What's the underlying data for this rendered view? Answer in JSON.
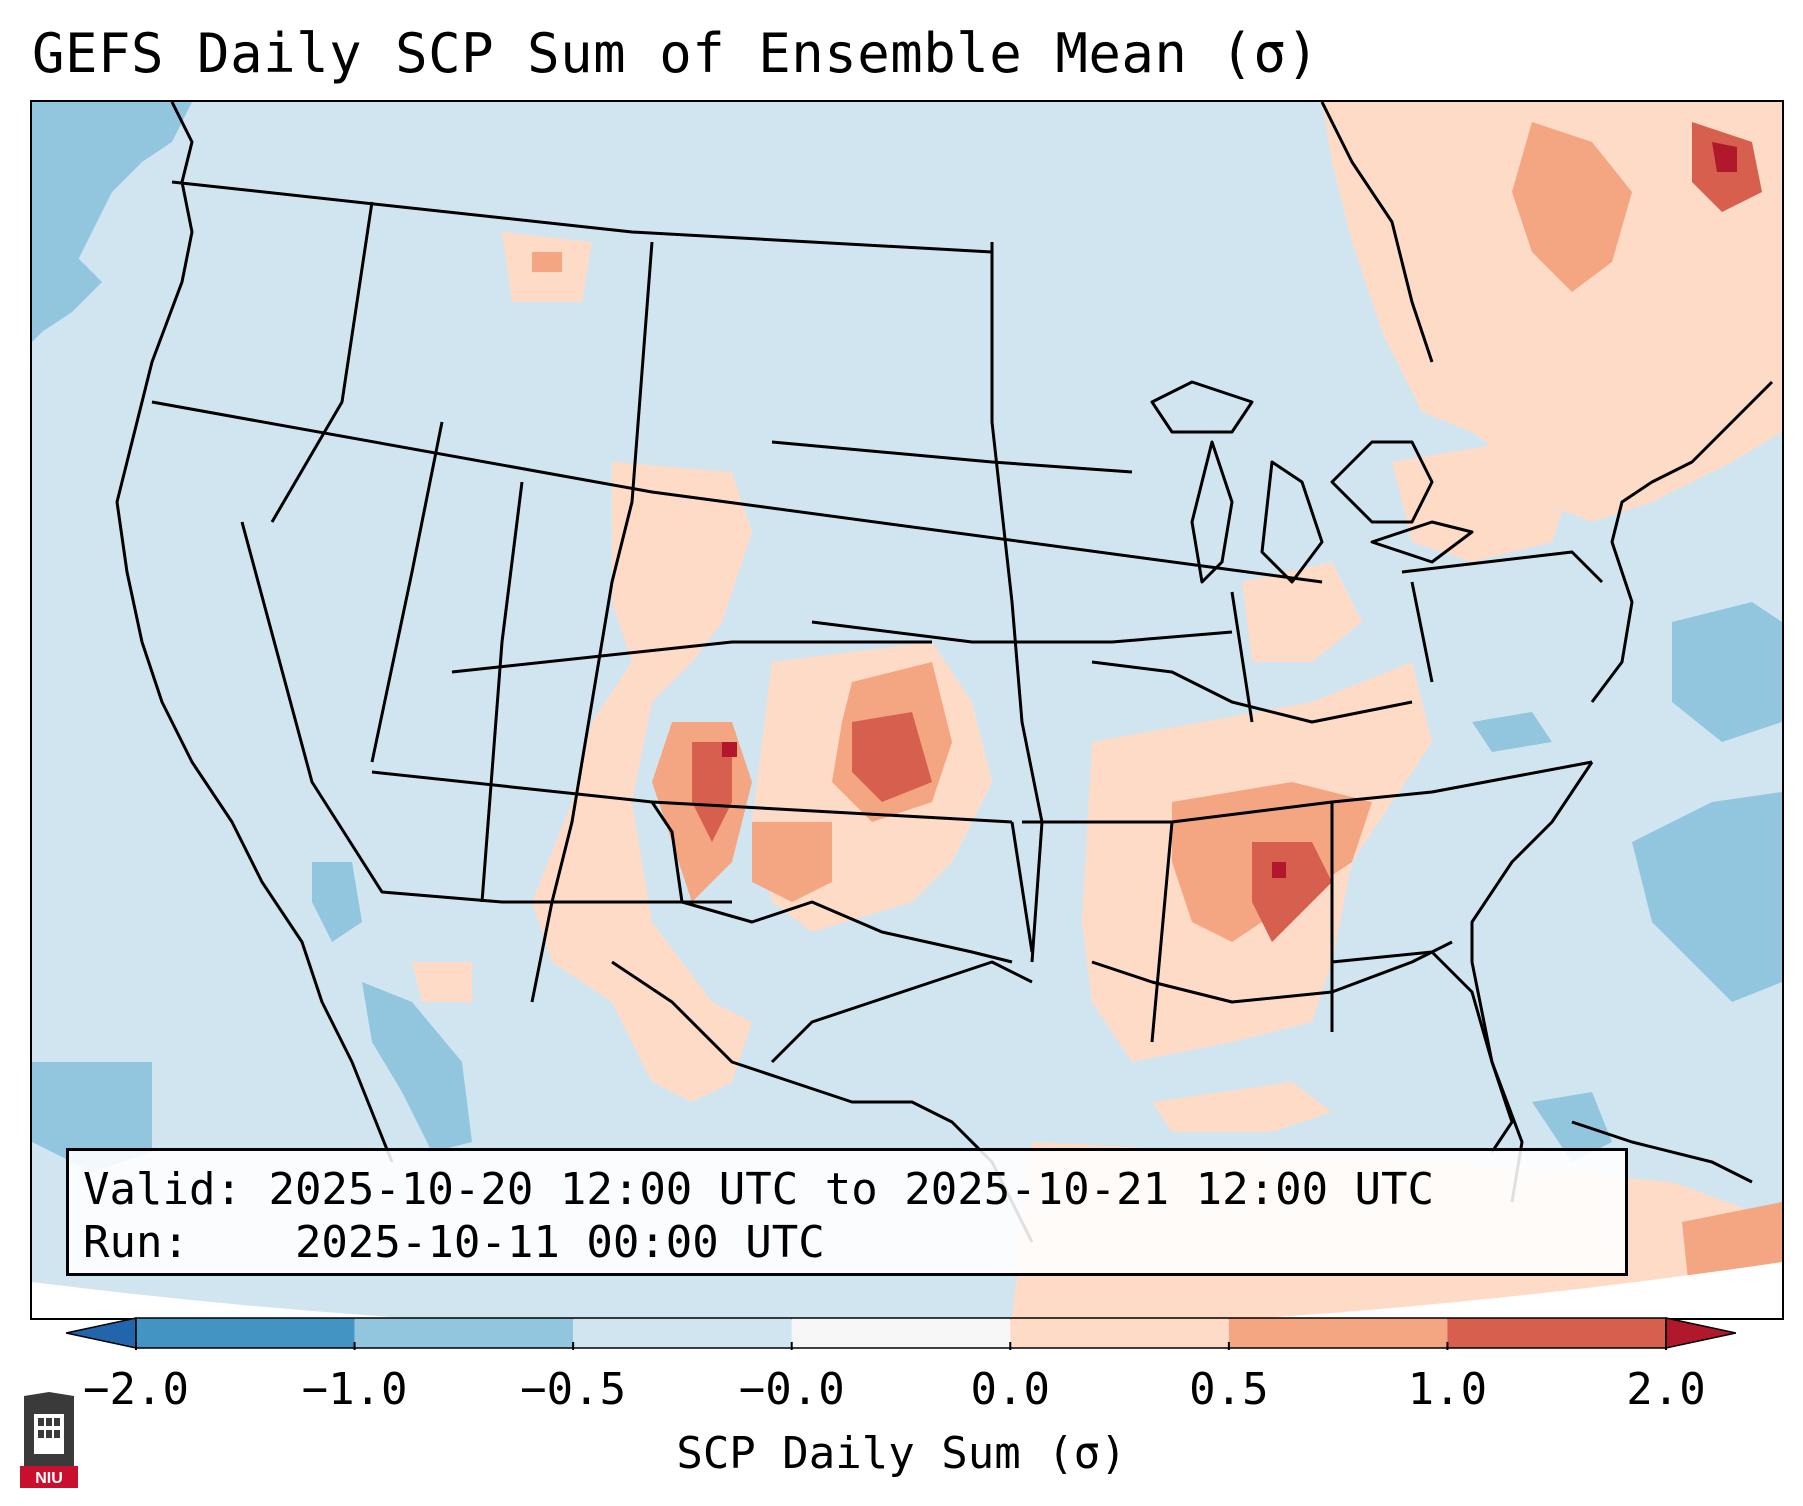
{
  "title": "GEFS Daily SCP Sum of Ensemble Mean (σ)",
  "valid_box": {
    "valid_label": "Valid:",
    "valid_value": "2025-10-20 12:00 UTC to 2025-10-21 12:00 UTC",
    "run_label": "Run:",
    "run_value": "2025-10-11 00:00 UTC"
  },
  "colorbar": {
    "label": "SCP Daily Sum (σ)",
    "ticks": [
      "−2.0",
      "−1.0",
      "−0.5",
      "−0.0",
      "0.0",
      "0.5",
      "1.0",
      "2.0"
    ],
    "colors": [
      "#4393c3",
      "#92c5de",
      "#d1e5f0",
      "#f7f7f7",
      "#fddbc7",
      "#f4a582",
      "#d6604d"
    ],
    "extend_low": "#2166ac",
    "extend_high": "#b2182b"
  },
  "logo": {
    "text": "NIU",
    "icon": "niu-building-icon"
  },
  "map": {
    "background": "#d1e5f0",
    "region": "Contiguous United States",
    "features": [
      "state-borders",
      "coastlines",
      "great-lakes",
      "mexico",
      "cuba"
    ]
  }
}
